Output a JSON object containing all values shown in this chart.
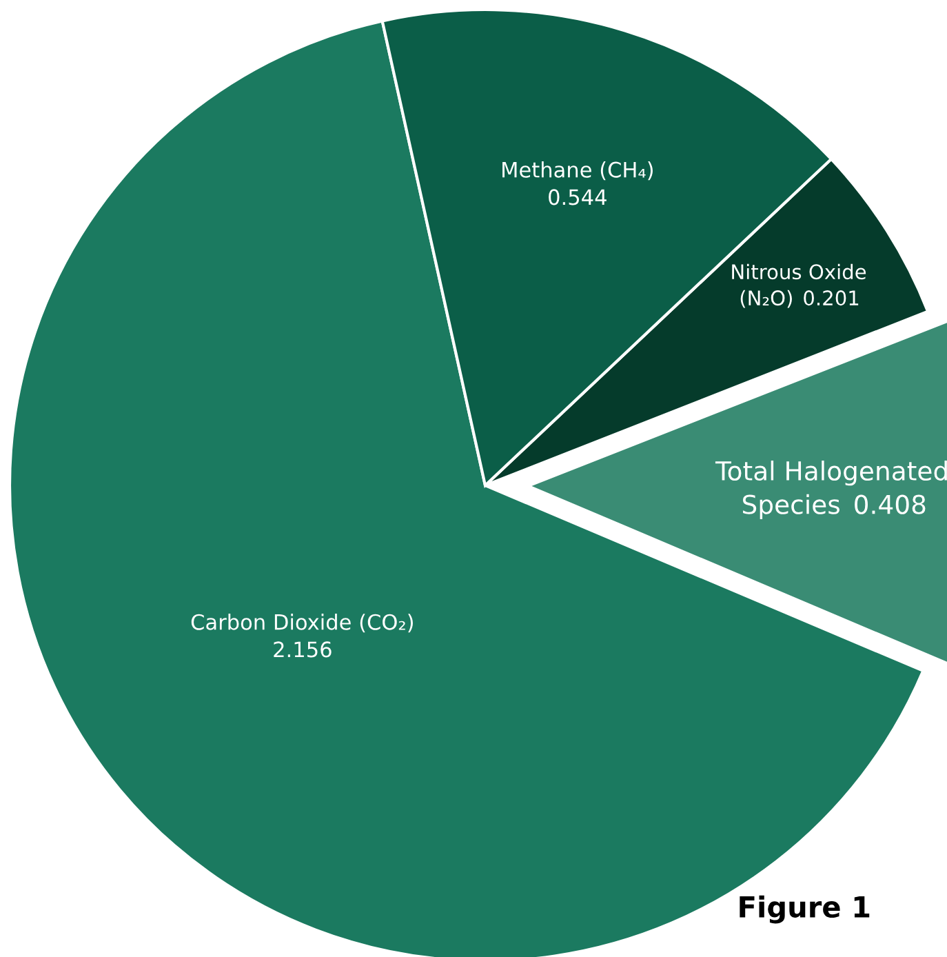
{
  "chart_data": {
    "type": "pie",
    "categories": [
      "Carbon Dioxide (CO₂)",
      "Total Halogenated Species",
      "Nitrous Oxide (N₂O)",
      "Methane (CH₄)"
    ],
    "values": [
      2.156,
      0.408,
      0.201,
      0.544
    ],
    "colors": [
      "#1b7a60",
      "#3a8c74",
      "#053b2b",
      "#0b5e48"
    ],
    "data_labels": true,
    "annotations": [
      "Figure 1"
    ],
    "legend": false
  }
}
